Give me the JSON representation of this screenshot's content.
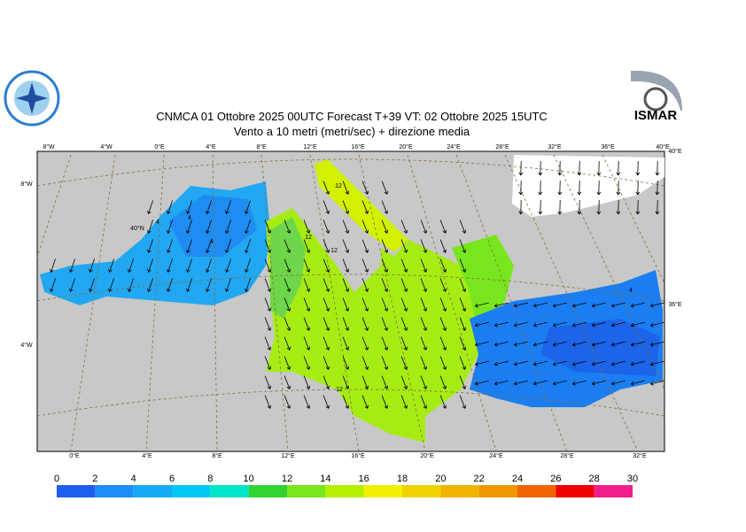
{
  "header": {
    "title": "CNMCA 01  Ottobre  2025 00UTC Forecast T+39 VT: 02  Ottobre  2025 15UTC",
    "subtitle": "Vento a 10 metri (metri/sec) + direzione media"
  },
  "logo_right": {
    "text": "ISMAR"
  },
  "map": {
    "top_labels": [
      "8°W",
      "4°W",
      "0°E",
      "4°E",
      "8°E",
      "12°E",
      "16°E",
      "20°E",
      "24°E",
      "28°E",
      "32°E",
      "36°E",
      "40°E"
    ],
    "bottom_labels": [
      "0°E",
      "4°E",
      "8°E",
      "12°E",
      "16°E",
      "20°E",
      "24°E",
      "28°E",
      "32°E"
    ],
    "left_labels": [
      "8°W",
      "4°W"
    ],
    "right_labels": [
      "40°E",
      "36°E"
    ],
    "inner_labels": [
      "40°N"
    ],
    "contour_labels": [
      "12",
      "12",
      "12",
      "12",
      "4",
      "4",
      "4",
      "4"
    ]
  },
  "colorbar": {
    "ticks": [
      0,
      2,
      4,
      6,
      8,
      10,
      12,
      14,
      16,
      18,
      20,
      22,
      24,
      26,
      28,
      30
    ],
    "colors": [
      "#1e5ff0",
      "#1e8cf5",
      "#14aaf5",
      "#00c8f5",
      "#00e6c8",
      "#32d232",
      "#78e61e",
      "#b4f000",
      "#f0f000",
      "#f0d200",
      "#f0b400",
      "#f09600",
      "#f06400",
      "#f00000",
      "#f01e8c"
    ]
  }
}
